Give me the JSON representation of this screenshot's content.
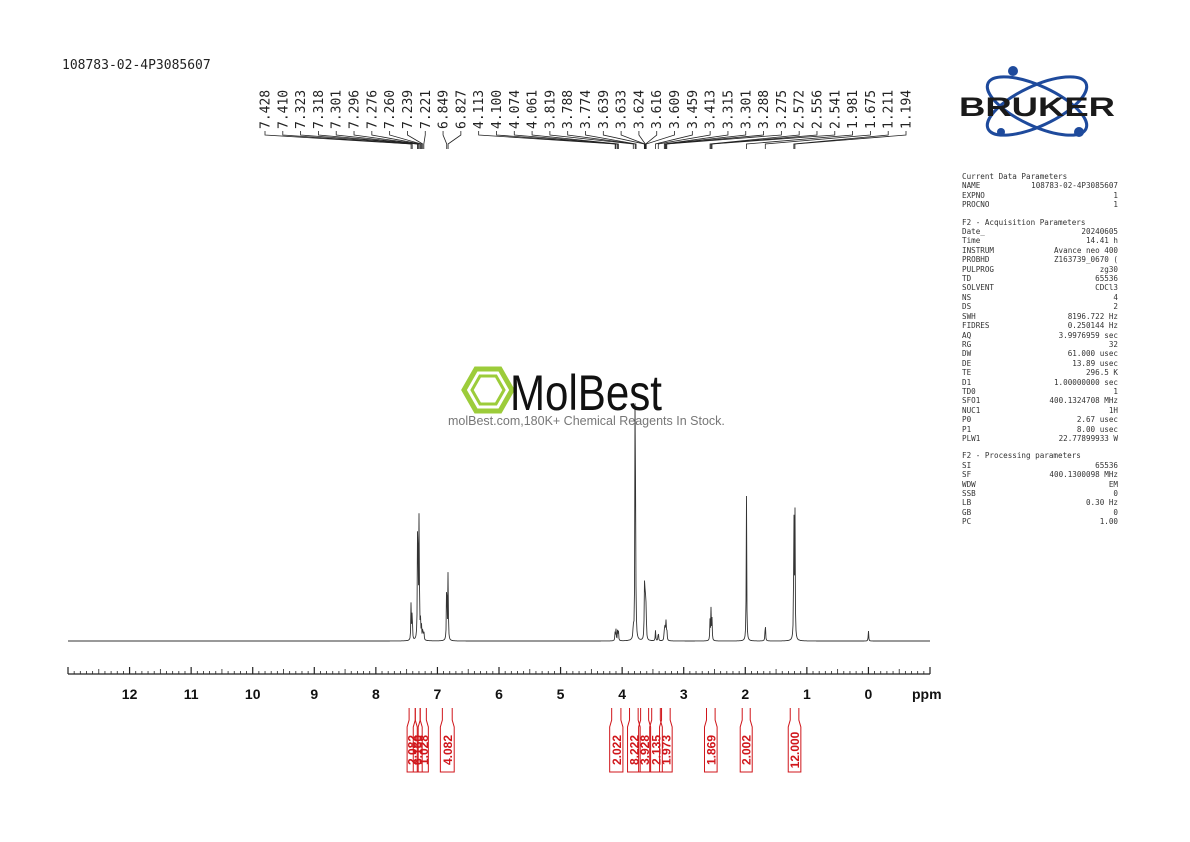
{
  "sample_id": "108783-02-4P3085607",
  "peak_labels": [
    "7.428",
    "7.410",
    "7.323",
    "7.318",
    "7.301",
    "7.296",
    "7.276",
    "7.260",
    "7.239",
    "7.221",
    "6.849",
    "6.827",
    "4.113",
    "4.100",
    "4.074",
    "4.061",
    "3.819",
    "3.788",
    "3.774",
    "3.639",
    "3.633",
    "3.624",
    "3.616",
    "3.609",
    "3.459",
    "3.413",
    "3.315",
    "3.301",
    "3.288",
    "3.275",
    "2.572",
    "2.556",
    "2.541",
    "1.981",
    "1.675",
    "1.211",
    "1.194"
  ],
  "chart_data": {
    "type": "line",
    "xlabel": "ppm",
    "xlim": [
      13,
      -1
    ],
    "x_ticks": [
      12,
      11,
      10,
      9,
      8,
      7,
      6,
      5,
      4,
      3,
      2,
      1,
      0
    ],
    "y_axis_visible": false,
    "grid": false,
    "peaks": [
      {
        "ppm": 7.428,
        "height": 0.11
      },
      {
        "ppm": 7.41,
        "height": 0.1
      },
      {
        "ppm": 7.323,
        "height": 0.21
      },
      {
        "ppm": 7.318,
        "height": 0.23
      },
      {
        "ppm": 7.301,
        "height": 0.23
      },
      {
        "ppm": 7.296,
        "height": 0.21
      },
      {
        "ppm": 7.276,
        "height": 0.05
      },
      {
        "ppm": 7.26,
        "height": 0.04
      },
      {
        "ppm": 7.239,
        "height": 0.04
      },
      {
        "ppm": 7.221,
        "height": 0.03
      },
      {
        "ppm": 6.849,
        "height": 0.22
      },
      {
        "ppm": 6.827,
        "height": 0.2
      },
      {
        "ppm": 4.113,
        "height": 0.03
      },
      {
        "ppm": 4.1,
        "height": 0.03
      },
      {
        "ppm": 4.074,
        "height": 0.03
      },
      {
        "ppm": 4.061,
        "height": 0.03
      },
      {
        "ppm": 3.819,
        "height": 0.04
      },
      {
        "ppm": 3.788,
        "height": 1.0
      },
      {
        "ppm": 3.774,
        "height": 0.05
      },
      {
        "ppm": 3.639,
        "height": 0.09
      },
      {
        "ppm": 3.633,
        "height": 0.14
      },
      {
        "ppm": 3.624,
        "height": 0.1
      },
      {
        "ppm": 3.616,
        "height": 0.08
      },
      {
        "ppm": 3.609,
        "height": 0.06
      },
      {
        "ppm": 3.459,
        "height": 0.03
      },
      {
        "ppm": 3.413,
        "height": 0.03
      },
      {
        "ppm": 3.315,
        "height": 0.04
      },
      {
        "ppm": 3.301,
        "height": 0.05
      },
      {
        "ppm": 3.288,
        "height": 0.05
      },
      {
        "ppm": 3.275,
        "height": 0.04
      },
      {
        "ppm": 2.572,
        "height": 0.06
      },
      {
        "ppm": 2.556,
        "height": 0.09
      },
      {
        "ppm": 2.541,
        "height": 0.06
      },
      {
        "ppm": 1.981,
        "height": 0.42
      },
      {
        "ppm": 1.675,
        "height": 0.06
      },
      {
        "ppm": 1.211,
        "height": 0.4
      },
      {
        "ppm": 1.194,
        "height": 0.39
      },
      {
        "ppm": 0.0,
        "height": 0.03
      }
    ],
    "integrals": [
      {
        "from": 7.46,
        "to": 7.36,
        "value": "2.082"
      },
      {
        "from": 7.36,
        "to": 7.28,
        "value": "6.160"
      },
      {
        "from": 7.28,
        "to": 7.18,
        "value": "1.028"
      },
      {
        "from": 6.92,
        "to": 6.76,
        "value": "4.082"
      },
      {
        "from": 4.17,
        "to": 4.02,
        "value": "2.022"
      },
      {
        "from": 3.88,
        "to": 3.74,
        "value": "8.222"
      },
      {
        "from": 3.7,
        "to": 3.57,
        "value": "3.928"
      },
      {
        "from": 3.52,
        "to": 3.38,
        "value": "2.135"
      },
      {
        "from": 3.36,
        "to": 3.22,
        "value": "1.973"
      },
      {
        "from": 2.63,
        "to": 2.49,
        "value": "1.869"
      },
      {
        "from": 2.05,
        "to": 1.92,
        "value": "2.002"
      },
      {
        "from": 1.27,
        "to": 1.13,
        "value": "12.000"
      }
    ]
  },
  "logo": {
    "brand": "BRUKER"
  },
  "watermark": {
    "brand": "MolBest",
    "tagline": "molBest.com,180K+ Chemical Reagents In Stock."
  },
  "parameters": {
    "section1_title": "Current Data Parameters",
    "section1": [
      {
        "key": "NAME",
        "value": "108783-02-4P3085607"
      },
      {
        "key": "EXPNO",
        "value": "1"
      },
      {
        "key": "PROCNO",
        "value": "1"
      }
    ],
    "section2_title": "F2 - Acquisition Parameters",
    "section2": [
      {
        "key": "Date_",
        "value": "20240605"
      },
      {
        "key": "Time",
        "value": "14.41 h"
      },
      {
        "key": "INSTRUM",
        "value": "Avance neo 400"
      },
      {
        "key": "PROBHD",
        "value": "Z163739_0670 ("
      },
      {
        "key": "PULPROG",
        "value": "zg30"
      },
      {
        "key": "TD",
        "value": "65536"
      },
      {
        "key": "SOLVENT",
        "value": "CDCl3"
      },
      {
        "key": "NS",
        "value": "4"
      },
      {
        "key": "DS",
        "value": "2"
      },
      {
        "key": "SWH",
        "value": "8196.722 Hz"
      },
      {
        "key": "FIDRES",
        "value": "0.250144 Hz"
      },
      {
        "key": "AQ",
        "value": "3.9976959 sec"
      },
      {
        "key": "RG",
        "value": "32"
      },
      {
        "key": "DW",
        "value": "61.000 usec"
      },
      {
        "key": "DE",
        "value": "13.89 usec"
      },
      {
        "key": "TE",
        "value": "296.5 K"
      },
      {
        "key": "D1",
        "value": "1.00000000 sec"
      },
      {
        "key": "TD0",
        "value": "1"
      },
      {
        "key": "SFO1",
        "value": "400.1324708 MHz"
      },
      {
        "key": "NUC1",
        "value": "1H"
      },
      {
        "key": "P0",
        "value": "2.67 usec"
      },
      {
        "key": "P1",
        "value": "8.00 usec"
      },
      {
        "key": "PLW1",
        "value": "22.77899933 W"
      }
    ],
    "section3_title": "F2 - Processing parameters",
    "section3": [
      {
        "key": "SI",
        "value": "65536"
      },
      {
        "key": "SF",
        "value": "400.1300098 MHz"
      },
      {
        "key": "WDW",
        "value": "EM"
      },
      {
        "key": "SSB",
        "value": "0"
      },
      {
        "key": "LB",
        "value": "0.30 Hz"
      },
      {
        "key": "GB",
        "value": "0"
      },
      {
        "key": "PC",
        "value": "1.00"
      }
    ]
  }
}
